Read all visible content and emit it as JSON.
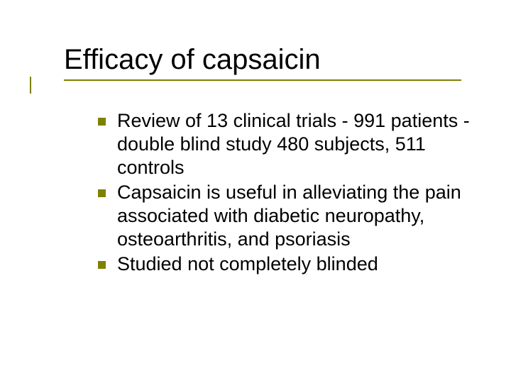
{
  "slide": {
    "title": "Efficacy of capsaicin",
    "title_fontsize": 40,
    "title_color": "#000000",
    "rule_color": "#808000",
    "tick_color": "#808000",
    "bullet_color": "#808000",
    "body_fontsize": 27,
    "body_color": "#000000",
    "background_color": "#ffffff",
    "bullets": [
      "Review of 13 clinical trials - 991 patients - double blind study 480 subjects, 511 controls",
      "Capsaicin is useful in alleviating the pain associated with diabetic neuropathy, osteoarthritis, and psoriasis",
      "Studied not completely blinded"
    ]
  }
}
